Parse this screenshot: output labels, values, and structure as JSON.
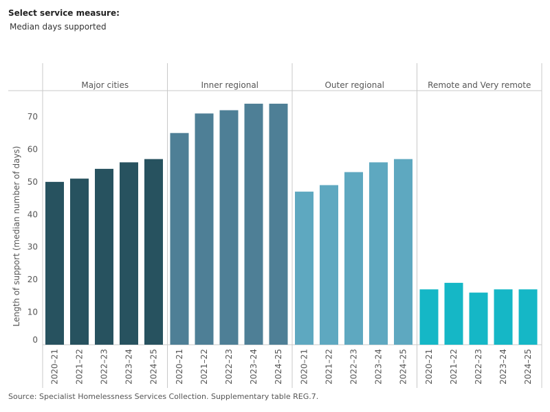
{
  "filter": {
    "title": "Select service measure:",
    "value": "Median days supported"
  },
  "chart_data": {
    "type": "bar",
    "ylabel": "Length of support (median number of days)",
    "ylim": [
      0,
      75
    ],
    "yticks": [
      0,
      10,
      20,
      30,
      40,
      50,
      60,
      70
    ],
    "grid": false,
    "categories": [
      "2020–21",
      "2021–22",
      "2022–23",
      "2023–24",
      "2024–25"
    ],
    "panels": [
      {
        "name": "Major cities",
        "color": "#27525f",
        "values": [
          50,
          51,
          54,
          56,
          57
        ]
      },
      {
        "name": "Inner regional",
        "color": "#4e7f96",
        "values": [
          65,
          71,
          72,
          74,
          74
        ]
      },
      {
        "name": "Outer regional",
        "color": "#5ea8c0",
        "values": [
          47,
          49,
          53,
          56,
          57
        ]
      },
      {
        "name": "Remote and Very remote",
        "color": "#15b7c6",
        "values": [
          17,
          19,
          16,
          17,
          17
        ]
      }
    ]
  },
  "source": "Source: Specialist Homelessness Services Collection. Supplementary table REG.7."
}
